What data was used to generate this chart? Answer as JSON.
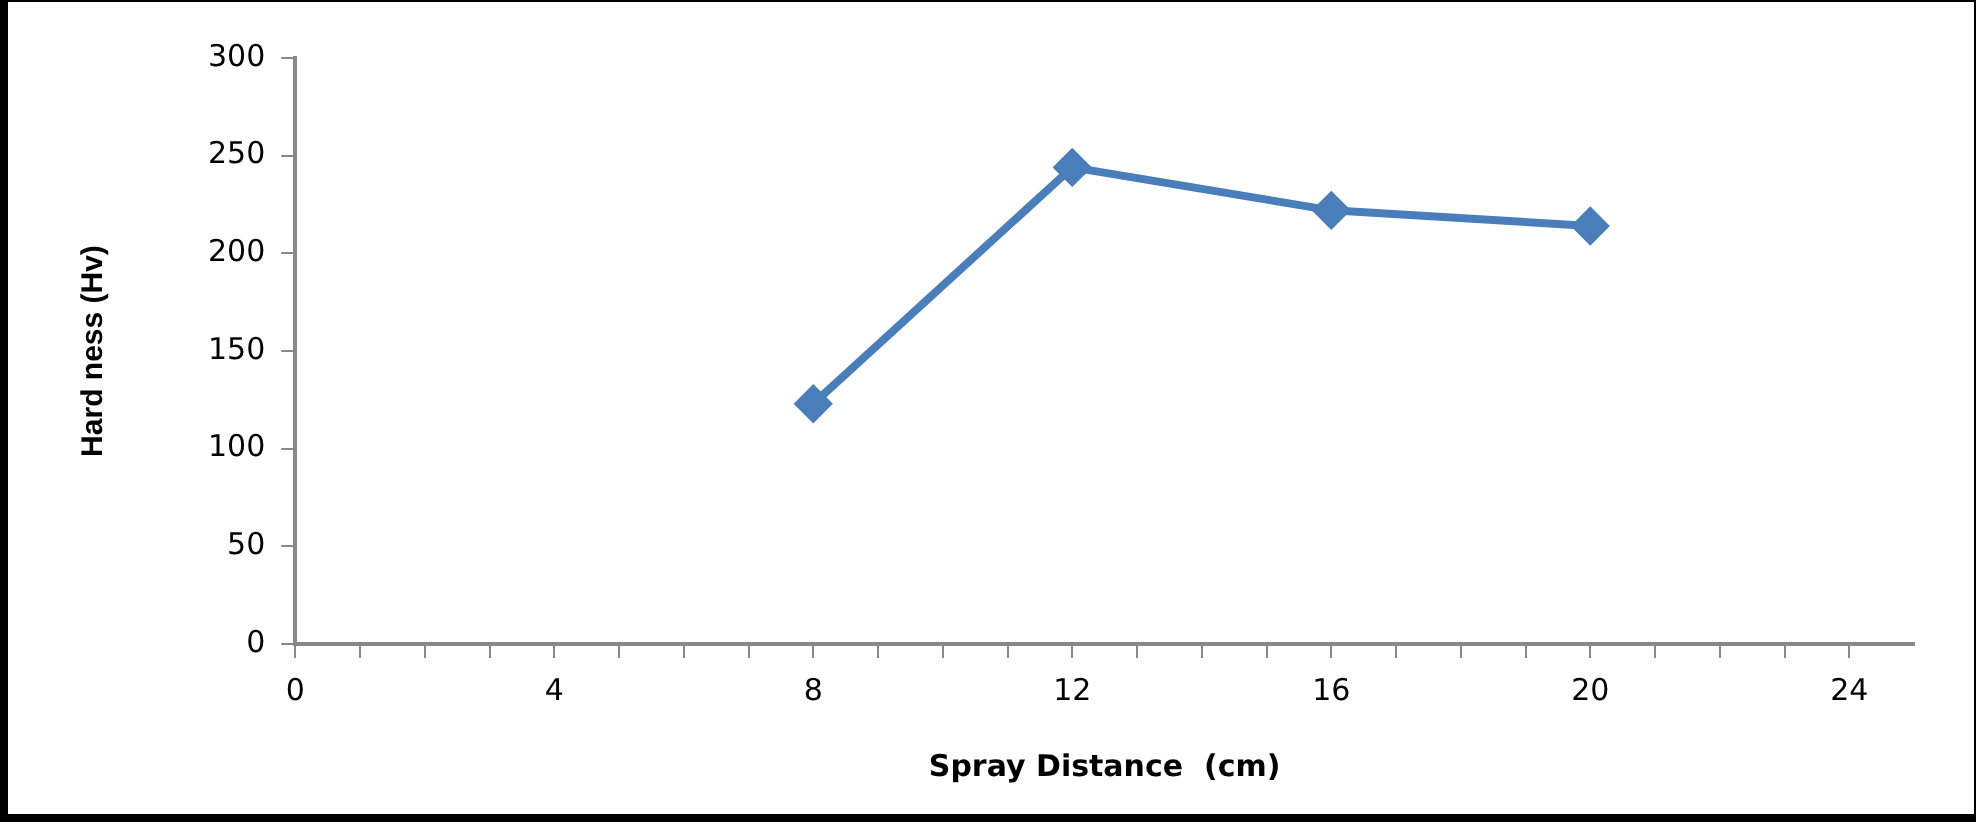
{
  "chart_data": {
    "type": "line",
    "xlabel": "Spray Distance  (cm)",
    "ylabel": "Hard ness (Hv)",
    "x": [
      8,
      12,
      16,
      20
    ],
    "series": [
      {
        "color": "#4a7ebb",
        "values": [
          123,
          244,
          222,
          214
        ]
      }
    ],
    "xlim": [
      0,
      25
    ],
    "xticks": [
      0,
      {
        "value": 1,
        "label": null
      },
      {
        "value": 2,
        "label": null
      },
      {
        "value": 3,
        "label": null
      },
      4,
      {
        "value": 5,
        "label": null
      },
      {
        "value": 6,
        "label": null
      },
      {
        "value": 7,
        "label": null
      },
      8,
      {
        "value": 9,
        "label": null
      },
      {
        "value": 10,
        "label": null
      },
      {
        "value": 11,
        "label": null
      },
      12,
      {
        "value": 13,
        "label": null
      },
      {
        "value": 14,
        "label": null
      },
      {
        "value": 15,
        "label": null
      },
      16,
      {
        "value": 17,
        "label": null
      },
      {
        "value": 18,
        "label": null
      },
      {
        "value": 19,
        "label": null
      },
      20,
      {
        "value": 21,
        "label": null
      },
      {
        "value": 22,
        "label": null
      },
      {
        "value": 23,
        "label": null
      },
      24
    ],
    "ylim": [
      0,
      300
    ],
    "yticks": [
      0,
      50,
      100,
      150,
      200,
      250,
      300
    ],
    "grid": false,
    "legend": false,
    "marker": "diamond",
    "line_style": "solid"
  }
}
